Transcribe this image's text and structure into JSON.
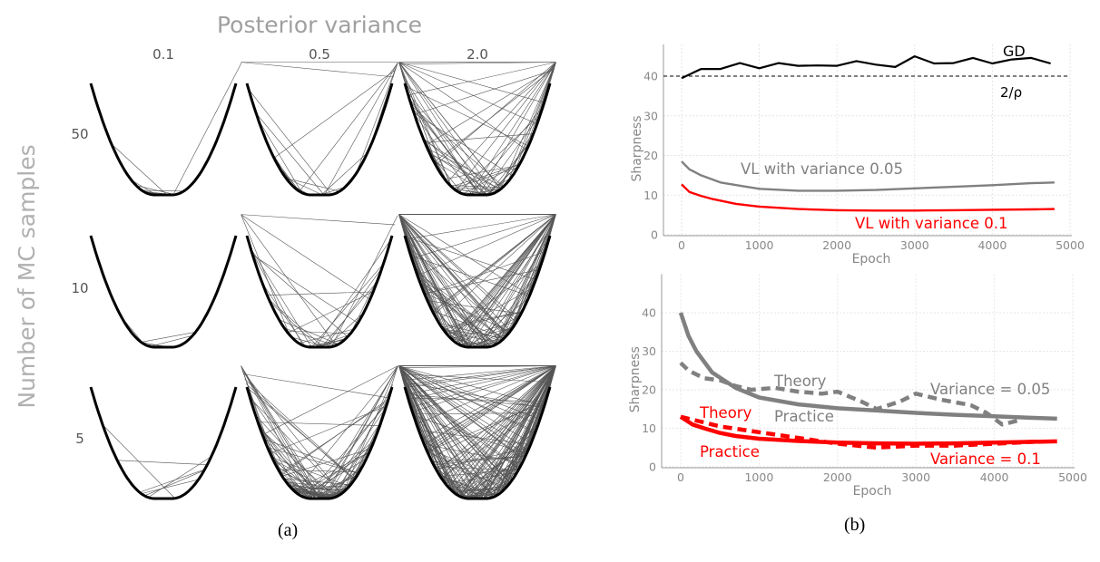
{
  "panels": {
    "a": "(a)",
    "b": "(b)"
  },
  "chart_data": [
    {
      "type": "diagram",
      "title": "Posterior variance",
      "ylabel": "Number of MC samples",
      "columns": [
        "0.1",
        "0.5",
        "2.0"
      ],
      "rows": [
        "50",
        "10",
        "5"
      ]
    },
    {
      "type": "line",
      "xlabel": "Epoch",
      "ylabel": "Sharpness",
      "xlim": [
        -250,
        5000
      ],
      "ylim": [
        0,
        48
      ],
      "xticks": [
        0,
        1000,
        2000,
        3000,
        4000,
        5000
      ],
      "yticks": [
        0,
        10,
        20,
        30,
        40
      ],
      "grid": true,
      "hline": {
        "y": 40,
        "label": "2/ρ",
        "style": "dashed",
        "color": "#000000"
      },
      "series": [
        {
          "name": "GD",
          "color": "#000000",
          "style": "solid",
          "x": [
            0,
            250,
            500,
            750,
            1000,
            1250,
            1500,
            1750,
            2000,
            2250,
            2500,
            2750,
            3000,
            3250,
            3500,
            3750,
            4000,
            4250,
            4500,
            4750
          ],
          "y": [
            39.5,
            41.8,
            41.8,
            43.3,
            42,
            43.3,
            42.6,
            42.7,
            42.6,
            43.8,
            42.9,
            42.3,
            45,
            43.2,
            43.3,
            44.6,
            43.2,
            44.2,
            44.6,
            43.2
          ]
        },
        {
          "name": "VL with variance 0.05",
          "color": "#808080",
          "style": "solid",
          "x": [
            0,
            100,
            250,
            500,
            800,
            1000,
            1500,
            2000,
            2500,
            3000,
            3500,
            4000,
            4500,
            4800
          ],
          "y": [
            18.5,
            16.5,
            15,
            13.2,
            12.2,
            11.6,
            11.1,
            11.1,
            11.3,
            11.7,
            12.1,
            12.5,
            13,
            13.2
          ]
        },
        {
          "name": "VL with variance 0.1",
          "color": "#ff0000",
          "style": "solid",
          "x": [
            0,
            100,
            250,
            400,
            700,
            1000,
            1500,
            2000,
            2500,
            3000,
            3500,
            4000,
            4500,
            4800
          ],
          "y": [
            12.7,
            10.8,
            9.8,
            9,
            7.8,
            7.1,
            6.5,
            6.2,
            6.1,
            6.1,
            6.2,
            6.3,
            6.4,
            6.5
          ]
        }
      ]
    },
    {
      "type": "line",
      "xlabel": "Epoch",
      "ylabel": "Sharpness",
      "xlim": [
        -250,
        5000
      ],
      "ylim": [
        0,
        50
      ],
      "xticks": [
        0,
        1000,
        2000,
        3000,
        4000,
        5000
      ],
      "yticks": [
        0,
        10,
        20,
        30,
        40
      ],
      "grid": true,
      "annotations": [
        {
          "text": "Theory",
          "color": "#808080"
        },
        {
          "text": "Practice",
          "color": "#808080"
        },
        {
          "text": "Variance = 0.05",
          "color": "#808080"
        },
        {
          "text": "Theory",
          "color": "#ff0000"
        },
        {
          "text": "Practice",
          "color": "#ff0000"
        },
        {
          "text": "Variance = 0.1",
          "color": "#ff0000"
        }
      ],
      "series": [
        {
          "color": "#808080",
          "style": "solid",
          "x": [
            0,
            100,
            200,
            400,
            700,
            1000,
            1500,
            2000,
            2500,
            3000,
            3500,
            4000,
            4500,
            4800
          ],
          "y": [
            40,
            34,
            30,
            24.5,
            20.5,
            18,
            16.2,
            15.2,
            14.6,
            14,
            13.5,
            13.1,
            12.7,
            12.5
          ]
        },
        {
          "color": "#808080",
          "style": "dashed",
          "x": [
            0,
            100,
            300,
            500,
            700,
            900,
            1200,
            1500,
            1800,
            2000,
            2300,
            2500,
            2800,
            3000,
            3300,
            3700,
            3900,
            4100,
            4300
          ],
          "y": [
            27,
            25,
            23,
            22.5,
            21,
            20,
            20.5,
            19.5,
            19,
            19.5,
            17,
            15,
            17,
            19,
            17.5,
            16,
            14,
            11,
            12
          ]
        },
        {
          "color": "#ff0000",
          "style": "solid",
          "x": [
            0,
            150,
            300,
            500,
            700,
            1000,
            1500,
            2000,
            2500,
            3000,
            3500,
            4000,
            4500,
            4800
          ],
          "y": [
            13,
            11,
            10,
            8.8,
            8,
            7.3,
            6.7,
            6.3,
            6.1,
            6,
            6.1,
            6.3,
            6.5,
            6.6
          ]
        },
        {
          "color": "#ff0000",
          "style": "dashed",
          "x": [
            0,
            200,
            500,
            1000,
            1500,
            2000,
            2500,
            3000,
            3500,
            4000,
            4500
          ],
          "y": [
            13,
            12,
            10.5,
            9,
            7.5,
            6,
            5,
            5.5,
            5.5,
            6,
            6.5
          ]
        }
      ]
    }
  ]
}
